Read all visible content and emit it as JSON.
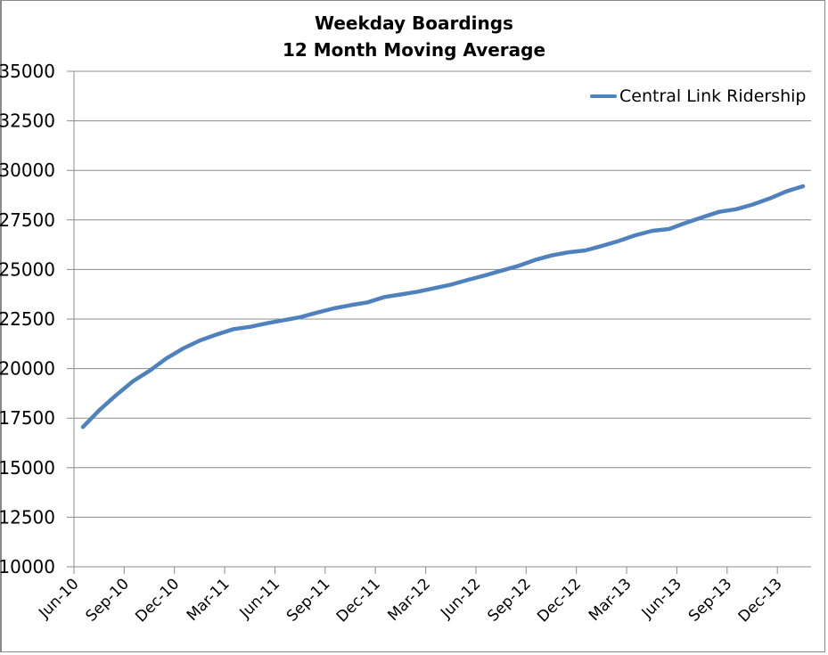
{
  "chart_data": {
    "type": "line",
    "title": "Weekday Boardings",
    "subtitle": "12 Month Moving Average",
    "xlabel": "",
    "ylabel": "",
    "ylim": [
      10000,
      35000
    ],
    "yticks": [
      10000,
      12500,
      15000,
      17500,
      20000,
      22500,
      25000,
      27500,
      30000,
      32500,
      35000
    ],
    "xtick_labels": [
      "Jun-10",
      "Sep-10",
      "Dec-10",
      "Mar-11",
      "Jun-11",
      "Sep-11",
      "Dec-11",
      "Mar-12",
      "Jun-12",
      "Sep-12",
      "Dec-12",
      "Mar-13",
      "Jun-13",
      "Sep-13",
      "Dec-13"
    ],
    "grid": "horizontal",
    "legend_position": "top-right",
    "x": [
      "Jun-10",
      "Jul-10",
      "Aug-10",
      "Sep-10",
      "Oct-10",
      "Nov-10",
      "Dec-10",
      "Jan-11",
      "Feb-11",
      "Mar-11",
      "Apr-11",
      "May-11",
      "Jun-11",
      "Jul-11",
      "Aug-11",
      "Sep-11",
      "Oct-11",
      "Nov-11",
      "Dec-11",
      "Jan-12",
      "Feb-12",
      "Mar-12",
      "Apr-12",
      "May-12",
      "Jun-12",
      "Jul-12",
      "Aug-12",
      "Sep-12",
      "Oct-12",
      "Nov-12",
      "Dec-12",
      "Jan-13",
      "Feb-13",
      "Mar-13",
      "Apr-13",
      "May-13",
      "Jun-13",
      "Jul-13",
      "Aug-13",
      "Sep-13",
      "Oct-13",
      "Nov-13",
      "Dec-13",
      "Jan-14"
    ],
    "series": [
      {
        "name": "Central Link Ridership",
        "color": "#4f81bd",
        "values": [
          17050,
          17920,
          18670,
          19370,
          19900,
          20520,
          21020,
          21420,
          21720,
          21990,
          22110,
          22290,
          22440,
          22600,
          22830,
          23040,
          23200,
          23340,
          23610,
          23740,
          23880,
          24060,
          24240,
          24480,
          24700,
          24940,
          25180,
          25480,
          25710,
          25870,
          25960,
          26190,
          26440,
          26730,
          26950,
          27040,
          27350,
          27640,
          27910,
          28040,
          28280,
          28580,
          28940,
          29200
        ]
      }
    ]
  },
  "legend": {
    "label": "Central Link Ridership"
  }
}
